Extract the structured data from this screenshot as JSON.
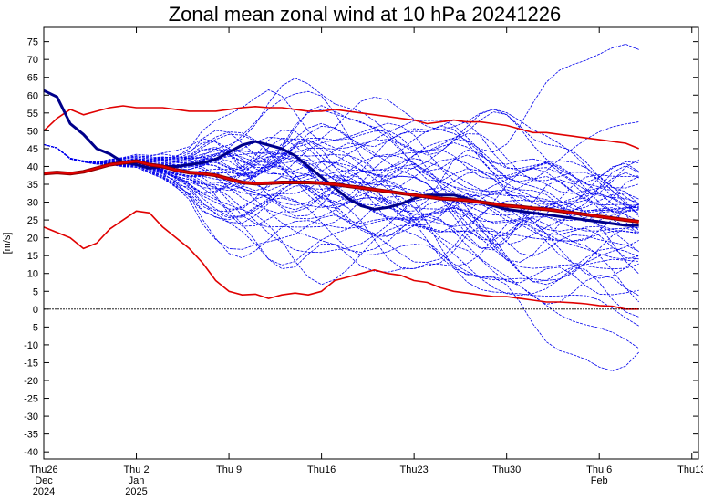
{
  "chart_data": {
    "type": "line",
    "title": "Zonal mean zonal wind at 10 hPa 20241226",
    "ylabel": "[m/s]",
    "ylim": [
      -42,
      79
    ],
    "xlim": [
      0,
      49.5
    ],
    "yticks": [
      -40,
      -35,
      -30,
      -25,
      -20,
      -15,
      -10,
      -5,
      0,
      5,
      10,
      15,
      20,
      25,
      30,
      35,
      40,
      45,
      50,
      55,
      60,
      65,
      70,
      75
    ],
    "xticks": [
      {
        "x": 0,
        "lines": [
          "Thu26",
          "Dec",
          "2024"
        ]
      },
      {
        "x": 7,
        "lines": [
          "Thu 2",
          "Jan",
          "2025"
        ]
      },
      {
        "x": 14,
        "lines": [
          "Thu 9"
        ]
      },
      {
        "x": 21,
        "lines": [
          "Thu16"
        ]
      },
      {
        "x": 28,
        "lines": [
          "Thu23"
        ]
      },
      {
        "x": 35,
        "lines": [
          "Thu30"
        ]
      },
      {
        "x": 42,
        "lines": [
          "Thu 6",
          "Feb"
        ]
      },
      {
        "x": 49,
        "lines": [
          "Thu13"
        ]
      }
    ],
    "zero_line": 0,
    "x": [
      0,
      1,
      2,
      3,
      4,
      5,
      6,
      7,
      8,
      9,
      10,
      11,
      12,
      13,
      14,
      15,
      16,
      17,
      18,
      19,
      20,
      21,
      22,
      23,
      24,
      25,
      26,
      27,
      28,
      29,
      30,
      31,
      32,
      33,
      34,
      35,
      36,
      37,
      38,
      39,
      40,
      41,
      42,
      43,
      44,
      45
    ],
    "series": [
      {
        "role": "analysis",
        "color": "#00008b",
        "values": [
          61.3,
          59.5,
          52,
          49,
          45,
          43.5,
          41.2,
          40.5,
          39.5,
          40,
          40,
          40.5,
          41,
          42,
          44,
          46,
          47,
          46,
          45,
          43,
          40,
          37,
          34,
          31,
          29,
          28,
          28.5,
          29.5,
          31,
          32,
          32,
          32,
          31,
          30,
          29,
          28,
          27.5,
          27,
          26.5,
          26,
          25.5,
          25,
          24.5,
          24,
          23.5,
          23.5
        ]
      },
      {
        "role": "ensemble-mean",
        "color": "#8b0000",
        "values": [
          38,
          38.3,
          38,
          38.5,
          39.5,
          40.5,
          41,
          41.5,
          40.5,
          40,
          39,
          38.3,
          38,
          37.5,
          36.5,
          35.5,
          35.2,
          35.3,
          35.5,
          35.5,
          35.5,
          35.3,
          35,
          34.5,
          34,
          33.5,
          33,
          32.5,
          32,
          31.5,
          31,
          30.8,
          30.5,
          30,
          29.5,
          29,
          28.7,
          28.3,
          28,
          27.5,
          27,
          26.5,
          26,
          25.5,
          25,
          24.5
        ]
      },
      {
        "role": "max",
        "color": "#e00000",
        "values": [
          50,
          53.5,
          56,
          54.5,
          55.5,
          56.5,
          57,
          56.5,
          56.5,
          56.5,
          56,
          55.5,
          55.5,
          55.5,
          56,
          56.5,
          56.8,
          56.5,
          56.5,
          56,
          55.5,
          55.5,
          56,
          55.5,
          55,
          54.5,
          54,
          53.5,
          53,
          52,
          52.5,
          53,
          52.5,
          52.5,
          52,
          51.5,
          50.5,
          49.5,
          49.5,
          49,
          48.5,
          48,
          47.5,
          47,
          46.5,
          45
        ]
      },
      {
        "role": "min",
        "color": "#e00000",
        "values": [
          23,
          21.5,
          20,
          17,
          18.5,
          22.5,
          25,
          27.5,
          27,
          23,
          20,
          17,
          13,
          8,
          5,
          4,
          4.2,
          3,
          4,
          4.5,
          4,
          5,
          8,
          9,
          10,
          11,
          10,
          9.5,
          8,
          7.5,
          6,
          5,
          4.5,
          4,
          3.5,
          3.5,
          3,
          2.5,
          2,
          2,
          1.8,
          1.5,
          1,
          0.8,
          0,
          0
        ]
      }
    ],
    "member_count": 50
  }
}
